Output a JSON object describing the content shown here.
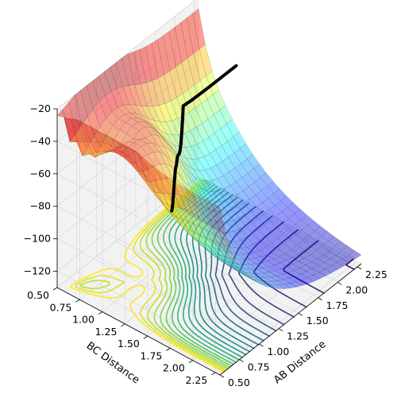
{
  "chart_data": {
    "type": "surface3d",
    "title": "",
    "xlabel": "AB Distance",
    "ylabel": "BC Distance",
    "zlabel": "",
    "x_ticks": [
      "0.50",
      "0.75",
      "1.00",
      "1.25",
      "1.50",
      "1.75",
      "2.00",
      "2.25"
    ],
    "y_ticks": [
      "0.50",
      "0.75",
      "1.00",
      "1.25",
      "1.50",
      "1.75",
      "2.00",
      "2.25"
    ],
    "z_ticks": [
      "−20",
      "−40",
      "−60",
      "−80",
      "−100",
      "−120"
    ],
    "x_range": [
      0.5,
      2.3
    ],
    "y_range": [
      0.5,
      2.3
    ],
    "z_range": [
      -130,
      -20
    ],
    "surface_colormap": "jet",
    "contour_colormap": "viridis",
    "contour_offset_z": -130,
    "contour_levels": [
      -128,
      -124,
      -120,
      -116,
      -112,
      -108,
      -104,
      -100,
      -96,
      -92,
      -88,
      -84,
      -80,
      -76,
      -72,
      -68,
      -64,
      -60,
      -56,
      -52,
      -48,
      -44,
      -40
    ],
    "trajectory_color": "#000000",
    "grid": true,
    "pane_color": "#f2f2f2"
  }
}
